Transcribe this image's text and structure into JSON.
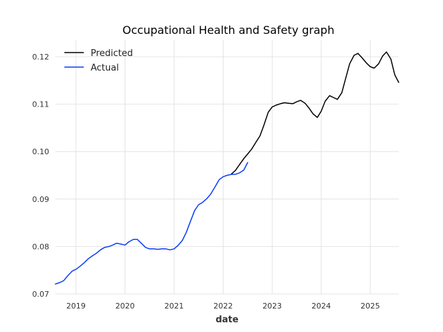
{
  "chart_data": {
    "type": "line",
    "title": "Occupational Health and Safety graph",
    "xlabel": "date",
    "ylabel": "",
    "xlim": [
      2018.58,
      2025.58
    ],
    "ylim": [
      0.07,
      0.1235
    ],
    "x_ticks": [
      2019,
      2020,
      2021,
      2022,
      2023,
      2024,
      2025
    ],
    "x_tick_labels": [
      "2019",
      "2020",
      "2021",
      "2022",
      "2023",
      "2024",
      "2025"
    ],
    "y_ticks": [
      0.07,
      0.08,
      0.09,
      0.1,
      0.11,
      0.12
    ],
    "y_tick_labels": [
      "0.07",
      "0.08",
      "0.09",
      "0.10",
      "0.11",
      "0.12"
    ],
    "grid": true,
    "legend_position": "top-left",
    "series": [
      {
        "name": "Predicted",
        "color": "#000000",
        "points": [
          [
            2022.17,
            0.0953
          ],
          [
            2022.25,
            0.096
          ],
          [
            2022.33,
            0.0972
          ],
          [
            2022.42,
            0.0985
          ],
          [
            2022.5,
            0.0995
          ],
          [
            2022.58,
            0.1005
          ],
          [
            2022.67,
            0.102
          ],
          [
            2022.75,
            0.1033
          ],
          [
            2022.83,
            0.1055
          ],
          [
            2022.92,
            0.1083
          ],
          [
            2023.0,
            0.1094
          ],
          [
            2023.08,
            0.1098
          ],
          [
            2023.17,
            0.1101
          ],
          [
            2023.25,
            0.1103
          ],
          [
            2023.33,
            0.1102
          ],
          [
            2023.42,
            0.1101
          ],
          [
            2023.5,
            0.1105
          ],
          [
            2023.58,
            0.1108
          ],
          [
            2023.67,
            0.1102
          ],
          [
            2023.75,
            0.1092
          ],
          [
            2023.83,
            0.108
          ],
          [
            2023.92,
            0.1072
          ],
          [
            2024.0,
            0.1085
          ],
          [
            2024.08,
            0.1106
          ],
          [
            2024.17,
            0.1118
          ],
          [
            2024.25,
            0.1114
          ],
          [
            2024.33,
            0.111
          ],
          [
            2024.42,
            0.1124
          ],
          [
            2024.5,
            0.1155
          ],
          [
            2024.58,
            0.1185
          ],
          [
            2024.67,
            0.1203
          ],
          [
            2024.75,
            0.1207
          ],
          [
            2024.83,
            0.1198
          ],
          [
            2024.92,
            0.1187
          ],
          [
            2025.0,
            0.1179
          ],
          [
            2025.08,
            0.1176
          ],
          [
            2025.17,
            0.1185
          ],
          [
            2025.25,
            0.1201
          ],
          [
            2025.33,
            0.121
          ],
          [
            2025.42,
            0.1195
          ],
          [
            2025.5,
            0.1162
          ],
          [
            2025.58,
            0.1146
          ]
        ]
      },
      {
        "name": "Actual",
        "color": "#0a3df5",
        "points": [
          [
            2018.58,
            0.0721
          ],
          [
            2018.67,
            0.0724
          ],
          [
            2018.75,
            0.0728
          ],
          [
            2018.83,
            0.0738
          ],
          [
            2018.92,
            0.0748
          ],
          [
            2019.0,
            0.0752
          ],
          [
            2019.08,
            0.0758
          ],
          [
            2019.17,
            0.0766
          ],
          [
            2019.25,
            0.0774
          ],
          [
            2019.33,
            0.078
          ],
          [
            2019.42,
            0.0786
          ],
          [
            2019.5,
            0.0793
          ],
          [
            2019.58,
            0.0798
          ],
          [
            2019.67,
            0.08
          ],
          [
            2019.75,
            0.0803
          ],
          [
            2019.83,
            0.0807
          ],
          [
            2019.92,
            0.0805
          ],
          [
            2020.0,
            0.0803
          ],
          [
            2020.08,
            0.081
          ],
          [
            2020.17,
            0.0815
          ],
          [
            2020.25,
            0.0815
          ],
          [
            2020.33,
            0.0807
          ],
          [
            2020.42,
            0.0798
          ],
          [
            2020.5,
            0.0795
          ],
          [
            2020.58,
            0.0795
          ],
          [
            2020.67,
            0.0794
          ],
          [
            2020.75,
            0.0795
          ],
          [
            2020.83,
            0.0795
          ],
          [
            2020.92,
            0.0793
          ],
          [
            2021.0,
            0.0795
          ],
          [
            2021.08,
            0.0802
          ],
          [
            2021.17,
            0.0813
          ],
          [
            2021.25,
            0.083
          ],
          [
            2021.33,
            0.0852
          ],
          [
            2021.42,
            0.0876
          ],
          [
            2021.5,
            0.0888
          ],
          [
            2021.58,
            0.0893
          ],
          [
            2021.67,
            0.0901
          ],
          [
            2021.75,
            0.0911
          ],
          [
            2021.83,
            0.0925
          ],
          [
            2021.92,
            0.0941
          ],
          [
            2022.0,
            0.0947
          ],
          [
            2022.08,
            0.095
          ],
          [
            2022.17,
            0.0952
          ],
          [
            2022.25,
            0.0952
          ],
          [
            2022.33,
            0.0955
          ],
          [
            2022.42,
            0.0961
          ],
          [
            2022.5,
            0.0977
          ]
        ]
      }
    ]
  }
}
